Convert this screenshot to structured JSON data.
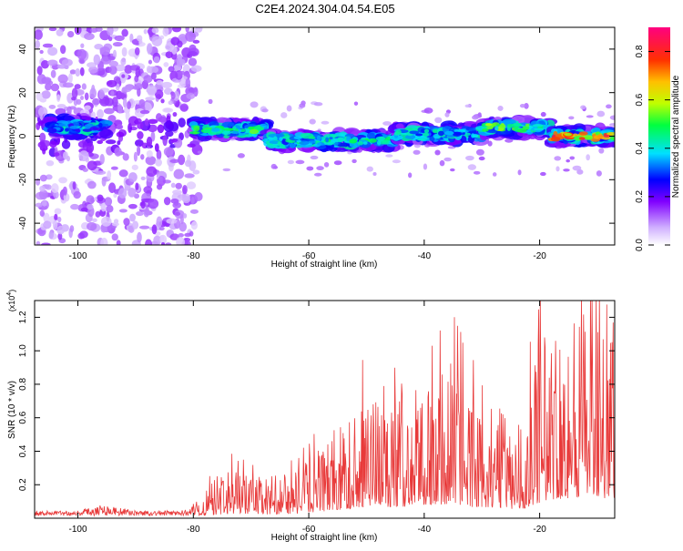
{
  "title": "C2E4.2024.304.04.54.E05",
  "colors": {
    "snr_line": "#e83a3a",
    "axis": "#000000",
    "background": "#ffffff"
  },
  "chart_data": [
    {
      "type": "heatmap",
      "title": "C2E4.2024.304.04.54.E05",
      "xlabel": "Height of straight line (km)",
      "ylabel": "Frequency (Hz)",
      "xlim": [
        -107.5,
        -7.0
      ],
      "ylim": [
        -50,
        50
      ],
      "x_ticks": [
        -100,
        -80,
        -60,
        -40,
        -20
      ],
      "y_ticks": [
        -40,
        -20,
        0,
        20,
        40
      ],
      "colorbar": {
        "label": "Normalized spectral amplitude",
        "range": [
          0,
          0.9
        ],
        "ticks": [
          0.0,
          0.2,
          0.4,
          0.6,
          0.8
        ],
        "position": "right"
      },
      "grid": false,
      "ridges": [
        {
          "x_range": [
            -105,
            -95
          ],
          "frequency": 4,
          "peak": 0.35
        },
        {
          "x_range": [
            -80,
            -67
          ],
          "frequency": 3,
          "peak": 0.55
        },
        {
          "x_range": [
            -67,
            -45
          ],
          "frequency": -2,
          "peak": 0.5
        },
        {
          "x_range": [
            -45,
            -30
          ],
          "frequency": 1,
          "peak": 0.45
        },
        {
          "x_range": [
            -30,
            -18
          ],
          "frequency": 4,
          "peak": 0.6
        },
        {
          "x_range": [
            -18,
            -7
          ],
          "frequency": 0,
          "peak": 0.85
        }
      ]
    },
    {
      "type": "line",
      "xlabel": "Height of straight line (km)",
      "ylabel": "SNR (10 * v/v)",
      "y_multiplier": "(x10^4)",
      "y_multiplier_base": "(x10",
      "y_multiplier_exp": "4",
      "y_multiplier_close": ")",
      "xlim": [
        -107.5,
        -7.0
      ],
      "ylim": [
        0,
        1.3
      ],
      "x_ticks": [
        -100,
        -80,
        -60,
        -40,
        -20
      ],
      "y_ticks": [
        0.2,
        0.4,
        0.6,
        0.8,
        1.0,
        1.2
      ],
      "grid": false,
      "series": [
        {
          "envelope": [
            {
              "x": -107,
              "y": 0.03
            },
            {
              "x": -100,
              "y": 0.03
            },
            {
              "x": -96,
              "y": 0.07
            },
            {
              "x": -90,
              "y": 0.03
            },
            {
              "x": -82,
              "y": 0.03
            },
            {
              "x": -78,
              "y": 0.12
            },
            {
              "x": -73,
              "y": 0.18
            },
            {
              "x": -68,
              "y": 0.15
            },
            {
              "x": -62,
              "y": 0.18
            },
            {
              "x": -56,
              "y": 0.3
            },
            {
              "x": -50,
              "y": 0.45
            },
            {
              "x": -44,
              "y": 0.45
            },
            {
              "x": -40,
              "y": 0.5
            },
            {
              "x": -35,
              "y": 0.58
            },
            {
              "x": -32,
              "y": 0.45
            },
            {
              "x": -27,
              "y": 0.4
            },
            {
              "x": -23,
              "y": 0.35
            },
            {
              "x": -21,
              "y": 0.55
            },
            {
              "x": -18,
              "y": 0.75
            },
            {
              "x": -14,
              "y": 0.8
            },
            {
              "x": -11,
              "y": 0.95
            },
            {
              "x": -8,
              "y": 0.75
            },
            {
              "x": -7,
              "y": 0.7
            }
          ]
        }
      ]
    }
  ]
}
